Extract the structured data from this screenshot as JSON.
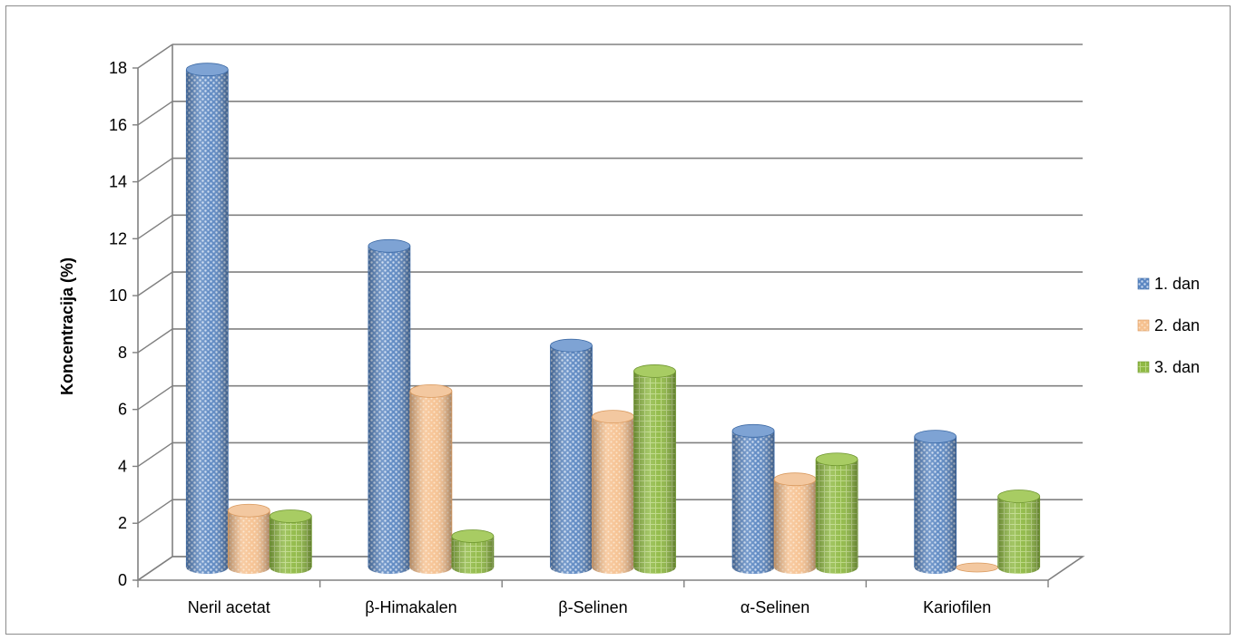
{
  "chart_data": {
    "type": "bar",
    "style": "3d-cylinder",
    "categories": [
      "Neril acetat",
      "β-Himakalen",
      "β-Selinen",
      "α-Selinen",
      "Kariofilen"
    ],
    "series": [
      {
        "name": "1. dan",
        "color": "#4f81bd",
        "values": [
          17.5,
          11.3,
          7.8,
          4.8,
          4.6
        ]
      },
      {
        "name": "2. dan",
        "color": "#f7b47a",
        "values": [
          2.0,
          6.2,
          5.3,
          3.1,
          0.0
        ]
      },
      {
        "name": "3. dan",
        "color": "#8fb944",
        "values": [
          1.8,
          1.1,
          6.9,
          3.8,
          2.5
        ]
      }
    ],
    "ylabel": "Koncentracija (%)",
    "ylim": [
      0,
      18
    ],
    "yticks": [
      "0",
      "2",
      "4",
      "6",
      "8",
      "10",
      "12",
      "14",
      "16",
      "18"
    ],
    "grid": true,
    "legend_position": "right"
  }
}
